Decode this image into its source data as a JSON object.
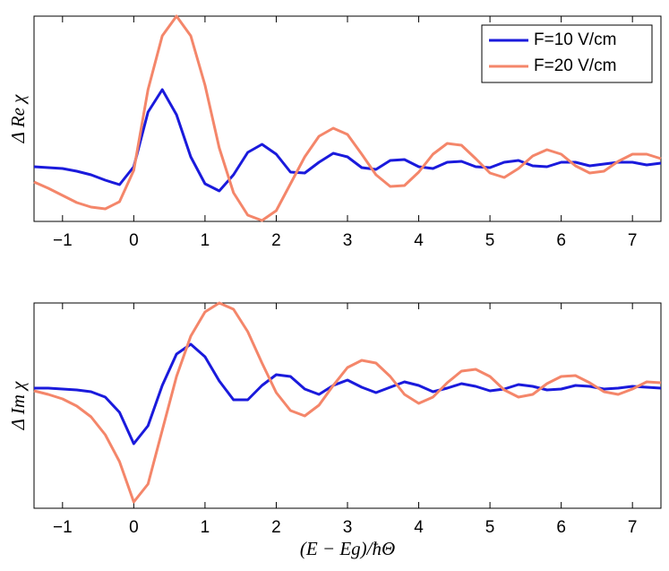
{
  "chart_data": [
    {
      "type": "line",
      "ylabel": "Δ Re χ",
      "x": [
        -1.4,
        -1.2,
        -1.0,
        -0.8,
        -0.6,
        -0.4,
        -0.2,
        0.0,
        0.2,
        0.4,
        0.6,
        0.8,
        1.0,
        1.2,
        1.4,
        1.6,
        1.8,
        2.0,
        2.2,
        2.4,
        2.6,
        2.8,
        3.0,
        3.2,
        3.4,
        3.6,
        3.8,
        4.0,
        4.2,
        4.4,
        4.6,
        4.8,
        5.0,
        5.2,
        5.4,
        5.6,
        5.8,
        6.0,
        6.2,
        6.4,
        6.6,
        6.8,
        7.0,
        7.2,
        7.4
      ],
      "series": [
        {
          "name": "F=10 V/cm",
          "color": "#1a1adc",
          "values": [
            61,
            60,
            59,
            56,
            52,
            46,
            41,
            61,
            122,
            147,
            119,
            72,
            42,
            34,
            52,
            77,
            86,
            75,
            55,
            54,
            66,
            76,
            72,
            60,
            58,
            68,
            69,
            61,
            59,
            66,
            67,
            61,
            60,
            66,
            68,
            62,
            61,
            66,
            66,
            62,
            64,
            66,
            66,
            63,
            65
          ]
        },
        {
          "name": "F=20 V/cm",
          "color": "#f4866a",
          "values": [
            44,
            37,
            29,
            21,
            16,
            14,
            22,
            57,
            147,
            207,
            229,
            207,
            152,
            82,
            32,
            7,
            1,
            12,
            42,
            72,
            95,
            104,
            97,
            75,
            52,
            39,
            40,
            55,
            75,
            87,
            85,
            70,
            54,
            49,
            59,
            73,
            80,
            75,
            62,
            54,
            56,
            67,
            75,
            75,
            70
          ]
        }
      ],
      "xlim": [
        -1.4,
        7.4
      ],
      "ylim": [
        0,
        229
      ],
      "xticks": [
        {
          "value": -1,
          "label": "−1"
        },
        0,
        1,
        2,
        3,
        4,
        5,
        6,
        7
      ],
      "legend": "upper right"
    },
    {
      "type": "line",
      "ylabel": "Δ Im χ",
      "xlabel": "(E − Eg)/ħΘ",
      "x": [
        -1.4,
        -1.2,
        -1.0,
        -0.8,
        -0.6,
        -0.4,
        -0.2,
        0.0,
        0.2,
        0.4,
        0.6,
        0.8,
        1.0,
        1.2,
        1.4,
        1.6,
        1.8,
        2.0,
        2.2,
        2.4,
        2.6,
        2.8,
        3.0,
        3.2,
        3.4,
        3.6,
        3.8,
        4.0,
        4.2,
        4.4,
        4.6,
        4.8,
        5.0,
        5.2,
        5.4,
        5.6,
        5.8,
        6.0,
        6.2,
        6.4,
        6.6,
        6.8,
        7.0,
        7.2,
        7.4
      ],
      "series": [
        {
          "color": "#1a1adc",
          "values": [
            134,
            134,
            133,
            132,
            130,
            124,
            107,
            72,
            92,
            137,
            172,
            183,
            169,
            142,
            121,
            121,
            137,
            149,
            147,
            133,
            127,
            137,
            143,
            135,
            129,
            135,
            141,
            137,
            130,
            134,
            139,
            136,
            131,
            133,
            138,
            136,
            132,
            133,
            137,
            136,
            133,
            134,
            136,
            135,
            134
          ]
        },
        {
          "color": "#f4866a",
          "values": [
            131,
            127,
            122,
            114,
            102,
            82,
            52,
            7,
            27,
            87,
            147,
            192,
            219,
            229,
            222,
            197,
            162,
            129,
            109,
            103,
            115,
            137,
            157,
            165,
            162,
            147,
            127,
            117,
            124,
            140,
            153,
            155,
            147,
            132,
            124,
            127,
            139,
            147,
            148,
            140,
            130,
            127,
            133,
            141,
            140
          ]
        }
      ],
      "xlim": [
        -1.4,
        7.4
      ],
      "ylim": [
        0,
        229
      ],
      "xticks": [
        {
          "value": -1,
          "label": "−1"
        },
        0,
        1,
        2,
        3,
        4,
        5,
        6,
        7
      ]
    }
  ]
}
